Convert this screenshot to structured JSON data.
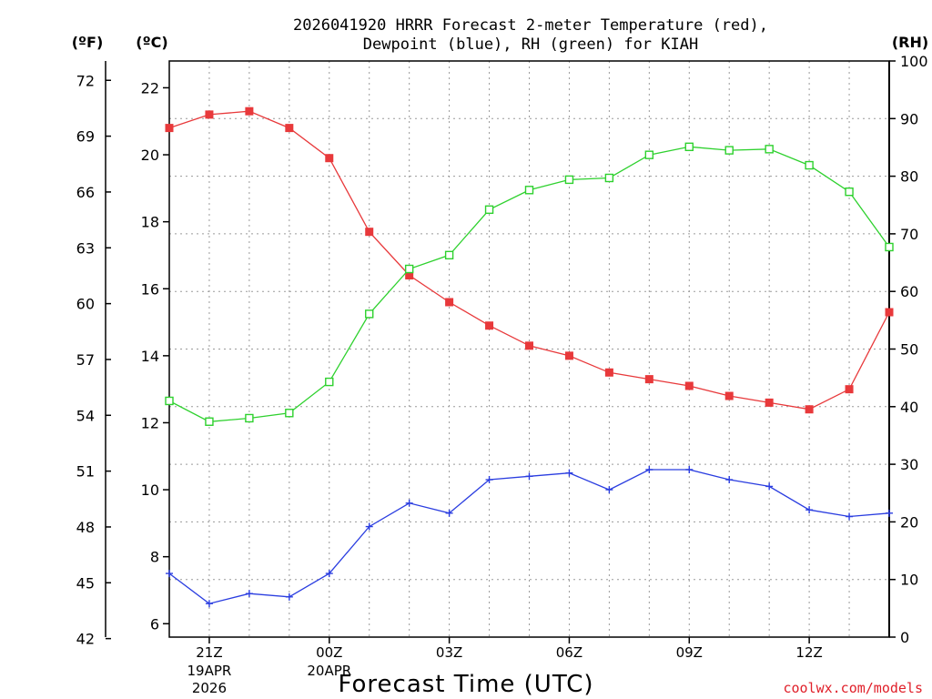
{
  "chart_data": {
    "type": "line",
    "title_line1": "2026041920 HRRR Forecast 2-meter Temperature (red),",
    "title_line2": "Dewpoint (blue), RH (green) for KIAH",
    "xlabel": "Forecast Time (UTC)",
    "credit": "coolwx.com/models",
    "unit_labels": {
      "fahrenheit": "(ºF)",
      "celsius": "(ºC)",
      "rh": "(RH)"
    },
    "x_hours": [
      20,
      21,
      22,
      23,
      24,
      25,
      26,
      27,
      28,
      29,
      30,
      31,
      32,
      33,
      34,
      35,
      36,
      37,
      38
    ],
    "x_range": [
      20,
      38
    ],
    "celsius_axis": {
      "range": [
        5.6,
        22.8
      ],
      "ticks": [
        6,
        8,
        10,
        12,
        14,
        16,
        18,
        20,
        22
      ]
    },
    "fahrenheit_axis": {
      "ticks": [
        42,
        45,
        48,
        51,
        54,
        57,
        60,
        63,
        66,
        69,
        72
      ]
    },
    "rh_axis": {
      "range": [
        0,
        100
      ],
      "ticks": [
        0,
        10,
        20,
        30,
        40,
        50,
        60,
        70,
        80,
        90,
        100
      ]
    },
    "x_ticks": [
      {
        "hour": 21,
        "label": "21Z",
        "date": "19APR",
        "year": "2026"
      },
      {
        "hour": 24,
        "label": "00Z",
        "date": "20APR",
        "year": ""
      },
      {
        "hour": 27,
        "label": "03Z",
        "date": "",
        "year": ""
      },
      {
        "hour": 30,
        "label": "06Z",
        "date": "",
        "year": ""
      },
      {
        "hour": 33,
        "label": "09Z",
        "date": "",
        "year": ""
      },
      {
        "hour": 36,
        "label": "12Z",
        "date": "",
        "year": ""
      }
    ],
    "series": [
      {
        "name": "Temperature",
        "axis": "celsius",
        "color": "#e8393b",
        "marker": "filled-square",
        "values": [
          20.8,
          21.2,
          21.3,
          20.8,
          19.9,
          17.7,
          16.4,
          15.6,
          14.9,
          14.3,
          14.0,
          13.5,
          13.3,
          13.1,
          12.8,
          12.6,
          12.4,
          13.0,
          15.3
        ]
      },
      {
        "name": "Dewpoint",
        "axis": "celsius",
        "color": "#2a3de0",
        "marker": "plus",
        "values": [
          7.5,
          6.6,
          6.9,
          6.8,
          7.5,
          8.9,
          9.6,
          9.3,
          10.3,
          10.4,
          10.5,
          10.0,
          10.6,
          10.6,
          10.3,
          10.1,
          9.4,
          9.2,
          9.3
        ]
      },
      {
        "name": "RH",
        "axis": "rh",
        "color": "#2ed12e",
        "marker": "open-square",
        "values": [
          41.0,
          37.4,
          38.0,
          38.9,
          44.3,
          56.1,
          63.9,
          66.3,
          74.2,
          77.6,
          79.4,
          79.7,
          83.7,
          85.1,
          84.5,
          84.7,
          81.9,
          77.3,
          67.7
        ]
      }
    ]
  }
}
